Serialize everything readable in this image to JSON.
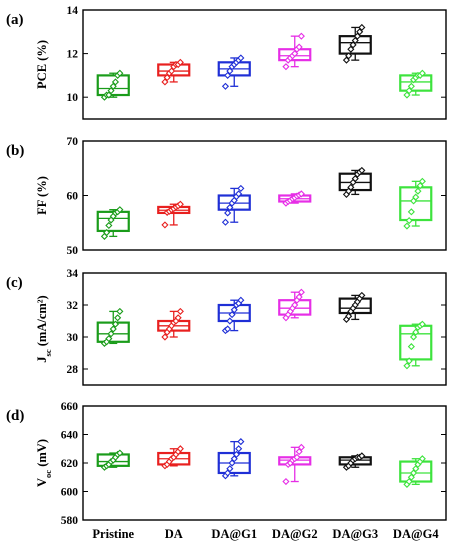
{
  "chart_data": [
    {
      "type": "box",
      "panel_label": "(a)",
      "ylabel_main": "PCE (%)",
      "ylabel_sub": "",
      "ylabel_tail": "",
      "ylim": [
        9,
        14
      ],
      "yticks": [
        "10",
        "12",
        "14"
      ],
      "ytick_values": [
        10,
        12,
        14
      ],
      "categories": [
        "Pristine",
        "DA",
        "DA@G1",
        "DA@G2",
        "DA@G3",
        "DA@G4"
      ],
      "colors": [
        "#1a9c1a",
        "#e8201f",
        "#1f2fd6",
        "#e62ee6",
        "#111111",
        "#3de33d"
      ],
      "boxes": [
        {
          "q1": 10.1,
          "median": 10.4,
          "q3": 11.0,
          "min": 10.0,
          "max": 11.1,
          "points": [
            10.0,
            10.1,
            10.1,
            10.3,
            10.5,
            10.7,
            11.0,
            11.1
          ]
        },
        {
          "q1": 11.0,
          "median": 11.2,
          "q3": 11.5,
          "min": 10.7,
          "max": 11.6,
          "points": [
            10.7,
            10.9,
            11.1,
            11.2,
            11.4,
            11.5,
            11.5,
            11.6
          ]
        },
        {
          "q1": 11.0,
          "median": 11.3,
          "q3": 11.6,
          "min": 10.5,
          "max": 11.8,
          "points": [
            10.5,
            11.0,
            11.2,
            11.4,
            11.5,
            11.6,
            11.7,
            11.8
          ]
        },
        {
          "q1": 11.7,
          "median": 11.9,
          "q3": 12.2,
          "min": 11.4,
          "max": 12.8,
          "points": [
            11.4,
            11.7,
            11.8,
            11.9,
            12.0,
            12.2,
            12.3,
            12.8
          ]
        },
        {
          "q1": 12.0,
          "median": 12.5,
          "q3": 12.8,
          "min": 11.7,
          "max": 13.2,
          "points": [
            11.7,
            11.9,
            12.2,
            12.4,
            12.6,
            12.8,
            13.0,
            13.2
          ]
        },
        {
          "q1": 10.3,
          "median": 10.7,
          "q3": 11.0,
          "min": 10.1,
          "max": 11.1,
          "points": [
            10.1,
            10.3,
            10.5,
            10.8,
            10.9,
            11.0,
            11.0,
            11.1
          ]
        }
      ]
    },
    {
      "type": "box",
      "panel_label": "(b)",
      "ylabel_main": "FF (%)",
      "ylabel_sub": "",
      "ylabel_tail": "",
      "ylim": [
        50,
        70
      ],
      "yticks": [
        "50",
        "60",
        "70"
      ],
      "ytick_values": [
        50,
        60,
        70
      ],
      "categories": [
        "Pristine",
        "DA",
        "DA@G1",
        "DA@G2",
        "DA@G3",
        "DA@G4"
      ],
      "colors": [
        "#1a9c1a",
        "#e8201f",
        "#1f2fd6",
        "#e62ee6",
        "#111111",
        "#3de33d"
      ],
      "boxes": [
        {
          "q1": 53.5,
          "median": 55.8,
          "q3": 57.0,
          "min": 52.5,
          "max": 57.4,
          "points": [
            52.5,
            53.2,
            54.5,
            55.5,
            56.2,
            56.8,
            57.0,
            57.4
          ]
        },
        {
          "q1": 56.8,
          "median": 57.3,
          "q3": 57.9,
          "min": 54.6,
          "max": 58.4,
          "points": [
            54.6,
            56.9,
            57.1,
            57.4,
            57.6,
            57.9,
            58.1,
            58.4
          ]
        },
        {
          "q1": 57.4,
          "median": 58.6,
          "q3": 60.0,
          "min": 55.1,
          "max": 61.3,
          "points": [
            55.1,
            56.8,
            57.8,
            58.6,
            59.1,
            59.8,
            60.3,
            61.3
          ]
        },
        {
          "q1": 58.9,
          "median": 59.4,
          "q3": 60.0,
          "min": 58.6,
          "max": 60.3,
          "points": [
            58.6,
            58.9,
            59.1,
            59.4,
            59.6,
            59.9,
            60.1,
            60.3
          ]
        },
        {
          "q1": 61.0,
          "median": 62.4,
          "q3": 64.0,
          "min": 60.2,
          "max": 64.6,
          "points": [
            60.2,
            60.8,
            61.5,
            62.4,
            63.1,
            63.9,
            64.3,
            64.6
          ]
        },
        {
          "q1": 55.5,
          "median": 59.0,
          "q3": 61.5,
          "min": 54.4,
          "max": 62.6,
          "points": [
            54.4,
            55.4,
            57.0,
            59.0,
            59.7,
            60.8,
            61.8,
            62.6
          ]
        }
      ]
    },
    {
      "type": "box",
      "panel_label": "(c)",
      "ylabel_main": "J",
      "ylabel_sub": "sc",
      "ylabel_tail": " (mA/cm²)",
      "ylim": [
        27,
        34
      ],
      "yticks": [
        "28",
        "30",
        "32",
        "34"
      ],
      "ytick_values": [
        28,
        30,
        32,
        34
      ],
      "categories": [
        "Pristine",
        "DA",
        "DA@G1",
        "DA@G2",
        "DA@G3",
        "DA@G4"
      ],
      "colors": [
        "#1a9c1a",
        "#e8201f",
        "#1f2fd6",
        "#e62ee6",
        "#111111",
        "#3de33d"
      ],
      "boxes": [
        {
          "q1": 29.7,
          "median": 30.2,
          "q3": 30.9,
          "min": 29.6,
          "max": 31.6,
          "points": [
            29.6,
            29.7,
            29.9,
            30.2,
            30.5,
            30.8,
            31.2,
            31.6
          ]
        },
        {
          "q1": 30.4,
          "median": 30.7,
          "q3": 31.0,
          "min": 30.0,
          "max": 31.6,
          "points": [
            30.0,
            30.3,
            30.5,
            30.7,
            30.9,
            31.0,
            31.2,
            31.6
          ]
        },
        {
          "q1": 31.0,
          "median": 31.5,
          "q3": 32.0,
          "min": 30.4,
          "max": 32.3,
          "points": [
            30.4,
            30.5,
            31.0,
            31.4,
            31.7,
            32.0,
            32.1,
            32.3
          ]
        },
        {
          "q1": 31.4,
          "median": 31.8,
          "q3": 32.3,
          "min": 31.2,
          "max": 32.8,
          "points": [
            31.2,
            31.4,
            31.6,
            31.8,
            32.0,
            32.3,
            32.5,
            32.8
          ]
        },
        {
          "q1": 31.5,
          "median": 31.8,
          "q3": 32.4,
          "min": 31.1,
          "max": 32.6,
          "points": [
            31.1,
            31.3,
            31.6,
            31.8,
            32.0,
            32.2,
            32.4,
            32.6
          ]
        },
        {
          "q1": 28.6,
          "median": 30.2,
          "q3": 30.7,
          "min": 28.2,
          "max": 30.8,
          "points": [
            28.2,
            28.5,
            29.4,
            30.0,
            30.3,
            30.6,
            30.7,
            30.8
          ]
        }
      ]
    },
    {
      "type": "box",
      "panel_label": "(d)",
      "ylabel_main": "V",
      "ylabel_sub": "oc",
      "ylabel_tail": " (mV)",
      "ylim": [
        580,
        660
      ],
      "yticks": [
        "580",
        "600",
        "620",
        "640",
        "660"
      ],
      "ytick_values": [
        580,
        600,
        620,
        640,
        660
      ],
      "categories": [
        "Pristine",
        "DA",
        "DA@G1",
        "DA@G2",
        "DA@G3",
        "DA@G4"
      ],
      "colors": [
        "#1a9c1a",
        "#e8201f",
        "#1f2fd6",
        "#e62ee6",
        "#111111",
        "#3de33d"
      ],
      "boxes": [
        {
          "q1": 618,
          "median": 621,
          "q3": 626,
          "min": 617,
          "max": 627,
          "points": [
            617,
            618,
            619,
            621,
            622,
            624,
            626,
            627
          ]
        },
        {
          "q1": 619,
          "median": 623,
          "q3": 627,
          "min": 618,
          "max": 630,
          "points": [
            618,
            619,
            621,
            623,
            624,
            626,
            628,
            630
          ]
        },
        {
          "q1": 613,
          "median": 620,
          "q3": 627,
          "min": 611,
          "max": 635,
          "points": [
            611,
            613,
            616,
            620,
            623,
            626,
            630,
            635
          ]
        },
        {
          "q1": 619,
          "median": 622,
          "q3": 624,
          "min": 607,
          "max": 631,
          "points": [
            607,
            619,
            620,
            622,
            623,
            624,
            628,
            631
          ]
        },
        {
          "q1": 619,
          "median": 622,
          "q3": 624,
          "min": 617,
          "max": 625,
          "points": [
            617,
            618,
            620,
            622,
            623,
            624,
            624,
            625
          ]
        },
        {
          "q1": 607,
          "median": 613,
          "q3": 621,
          "min": 605,
          "max": 623,
          "points": [
            605,
            607,
            610,
            613,
            616,
            619,
            621,
            623
          ]
        }
      ]
    }
  ]
}
